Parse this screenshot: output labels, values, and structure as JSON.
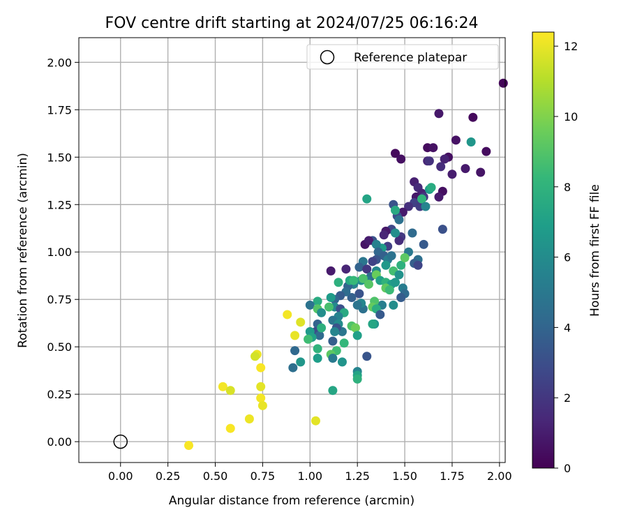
{
  "chart_data": {
    "type": "scatter",
    "title": "FOV centre drift starting at 2024/07/25 06:16:24",
    "xlabel": "Angular distance from reference (arcmin)",
    "ylabel": "Rotation from reference (arcmin)",
    "xlim": [
      -0.22,
      2.03
    ],
    "ylim": [
      -0.11,
      2.13
    ],
    "xticks": [
      "0.00",
      "0.25",
      "0.50",
      "0.75",
      "1.00",
      "1.25",
      "1.50",
      "1.75",
      "2.00"
    ],
    "yticks": [
      "0.00",
      "0.25",
      "0.50",
      "0.75",
      "1.00",
      "1.25",
      "1.50",
      "1.75",
      "2.00"
    ],
    "grid": true,
    "legend": {
      "placement": "top-right",
      "entries": [
        "Reference platepar"
      ]
    },
    "reference_point": {
      "x": 0.0,
      "y": 0.0,
      "marker": "hollow-circle"
    },
    "colorbar": {
      "label": "Hours from first FF file",
      "colormap": "viridis",
      "range": [
        0,
        12.4
      ],
      "ticks": [
        "0",
        "2",
        "4",
        "6",
        "8",
        "10",
        "12"
      ]
    },
    "colors": {
      "viridis": [
        "#440154",
        "#482878",
        "#3e4989",
        "#31688e",
        "#26828e",
        "#1f9e89",
        "#35b779",
        "#6ece58",
        "#b5de2b",
        "#fde725"
      ]
    },
    "series": [
      {
        "points": [
          [
            2.02,
            1.89,
            0.2
          ],
          [
            1.86,
            1.71,
            0.3
          ],
          [
            1.68,
            1.73,
            0.8
          ],
          [
            1.77,
            1.59,
            0.6
          ],
          [
            1.93,
            1.53,
            0.4
          ],
          [
            1.9,
            1.42,
            0.7
          ],
          [
            1.82,
            1.44,
            0.9
          ],
          [
            1.73,
            1.5,
            0.5
          ],
          [
            1.75,
            1.41,
            1.0
          ],
          [
            1.71,
            1.49,
            1.2
          ],
          [
            1.69,
            1.45,
            1.6
          ],
          [
            1.7,
            1.32,
            0.5
          ],
          [
            1.68,
            1.29,
            0.9
          ],
          [
            1.62,
            1.55,
            0.4
          ],
          [
            1.65,
            1.55,
            0.6
          ],
          [
            1.62,
            1.48,
            1.3
          ],
          [
            1.63,
            1.48,
            1.8
          ],
          [
            1.45,
            1.52,
            0.3
          ],
          [
            1.48,
            1.49,
            0.5
          ],
          [
            1.55,
            1.37,
            1.1
          ],
          [
            1.57,
            1.34,
            1.5
          ],
          [
            1.59,
            1.31,
            1.2
          ],
          [
            1.56,
            1.29,
            0.8
          ],
          [
            1.6,
            1.29,
            2.0
          ],
          [
            1.55,
            1.26,
            2.4
          ],
          [
            1.58,
            1.24,
            2.2
          ],
          [
            1.52,
            1.24,
            1.7
          ],
          [
            1.49,
            1.21,
            0.9
          ],
          [
            1.46,
            1.19,
            2.9
          ],
          [
            1.44,
            1.25,
            3.2
          ],
          [
            1.63,
            1.33,
            6.8
          ],
          [
            1.64,
            1.34,
            7.6
          ],
          [
            1.59,
            1.28,
            8.1
          ],
          [
            1.61,
            1.24,
            5.6
          ],
          [
            1.85,
            1.58,
            6.5
          ],
          [
            1.7,
            1.12,
            3.1
          ],
          [
            1.6,
            1.04,
            3.5
          ],
          [
            1.54,
            1.1,
            4.3
          ],
          [
            1.52,
            1.0,
            5.0
          ],
          [
            1.57,
            0.96,
            4.5
          ],
          [
            1.55,
            0.94,
            3.7
          ],
          [
            1.57,
            0.93,
            2.6
          ],
          [
            1.48,
            1.08,
            2.1
          ],
          [
            1.47,
            1.06,
            1.6
          ],
          [
            1.43,
            1.12,
            2.7
          ],
          [
            1.4,
            1.11,
            0.8
          ],
          [
            1.39,
            1.09,
            1.3
          ],
          [
            1.41,
            1.03,
            2.4
          ],
          [
            1.33,
            1.06,
            3.2
          ],
          [
            1.29,
            1.04,
            0.7
          ],
          [
            1.31,
            1.06,
            1.0
          ],
          [
            1.3,
            1.28,
            7.2
          ],
          [
            1.45,
            1.22,
            7.5
          ],
          [
            1.47,
            1.17,
            4.6
          ],
          [
            1.45,
            1.1,
            6.1
          ],
          [
            1.38,
            1.02,
            6.8
          ],
          [
            1.35,
            1.04,
            5.4
          ],
          [
            1.36,
            1.0,
            4.1
          ],
          [
            1.39,
            0.98,
            3.8
          ],
          [
            1.41,
            0.96,
            5.2
          ],
          [
            1.43,
            0.98,
            4.7
          ],
          [
            1.35,
            0.96,
            3.3
          ],
          [
            1.33,
            0.95,
            2.5
          ],
          [
            1.28,
            0.95,
            4.9
          ],
          [
            1.26,
            0.92,
            3.9
          ],
          [
            1.3,
            0.91,
            2.0
          ],
          [
            1.19,
            0.91,
            1.3
          ],
          [
            1.11,
            0.9,
            0.9
          ],
          [
            1.48,
            0.93,
            7.9
          ],
          [
            1.44,
            0.9,
            8.6
          ],
          [
            1.47,
            0.88,
            6.3
          ],
          [
            1.5,
            0.97,
            9.2
          ],
          [
            1.4,
            0.93,
            6.6
          ],
          [
            1.35,
            0.9,
            5.8
          ],
          [
            1.32,
            0.87,
            4.4
          ],
          [
            1.3,
            0.85,
            5.1
          ],
          [
            1.27,
            0.85,
            6.2
          ],
          [
            1.23,
            0.83,
            5.5
          ],
          [
            1.2,
            0.82,
            4.0
          ],
          [
            1.21,
            0.85,
            7.4
          ],
          [
            1.23,
            0.85,
            8.3
          ],
          [
            1.15,
            0.84,
            7.8
          ],
          [
            1.28,
            0.86,
            8.8
          ],
          [
            1.31,
            0.83,
            9.1
          ],
          [
            1.35,
            0.88,
            9.5
          ],
          [
            1.37,
            0.85,
            7.1
          ],
          [
            1.4,
            0.84,
            8.0
          ],
          [
            1.43,
            0.83,
            6.9
          ],
          [
            1.4,
            0.81,
            9.3
          ],
          [
            1.42,
            0.8,
            8.4
          ],
          [
            1.45,
            0.84,
            6.6
          ],
          [
            1.49,
            0.81,
            5.2
          ],
          [
            1.5,
            0.78,
            4.3
          ],
          [
            1.48,
            0.76,
            3.6
          ],
          [
            1.44,
            0.72,
            6.0
          ],
          [
            1.38,
            0.72,
            5.3
          ],
          [
            1.34,
            0.74,
            8.9
          ],
          [
            1.33,
            0.71,
            9.4
          ],
          [
            1.35,
            0.7,
            7.7
          ],
          [
            1.37,
            0.67,
            3.5
          ],
          [
            1.34,
            0.62,
            6.4
          ],
          [
            1.33,
            0.62,
            7.3
          ],
          [
            1.28,
            0.7,
            4.6
          ],
          [
            1.27,
            0.73,
            5.7
          ],
          [
            1.25,
            0.72,
            4.8
          ],
          [
            1.26,
            0.78,
            3.2
          ],
          [
            1.22,
            0.76,
            3.8
          ],
          [
            1.19,
            0.79,
            4.4
          ],
          [
            1.16,
            0.77,
            3.6
          ],
          [
            1.13,
            0.75,
            4.1
          ],
          [
            1.11,
            0.76,
            6.8
          ],
          [
            1.13,
            0.71,
            5.9
          ],
          [
            1.16,
            0.7,
            3.1
          ],
          [
            1.18,
            0.68,
            7.5
          ],
          [
            1.15,
            0.66,
            5.5
          ],
          [
            1.1,
            0.71,
            8.7
          ],
          [
            1.04,
            0.74,
            7.6
          ],
          [
            1.0,
            0.72,
            4.7
          ],
          [
            1.04,
            0.7,
            9.0
          ],
          [
            1.06,
            0.68,
            6.1
          ],
          [
            1.04,
            0.62,
            3.9
          ],
          [
            1.03,
            0.58,
            2.9
          ],
          [
            1.05,
            0.56,
            4.3
          ],
          [
            1.0,
            0.58,
            6.7
          ],
          [
            1.01,
            0.55,
            7.1
          ],
          [
            1.06,
            0.6,
            7.8
          ],
          [
            0.99,
            0.54,
            8.5
          ],
          [
            1.12,
            0.64,
            4.8
          ],
          [
            1.15,
            0.62,
            6.0
          ],
          [
            1.17,
            0.58,
            4.9
          ],
          [
            1.14,
            0.6,
            3.2
          ],
          [
            1.13,
            0.58,
            5.6
          ],
          [
            1.12,
            0.53,
            3.7
          ],
          [
            1.18,
            0.52,
            8.2
          ],
          [
            1.22,
            0.61,
            8.9
          ],
          [
            1.24,
            0.6,
            9.6
          ],
          [
            1.25,
            0.56,
            7.0
          ],
          [
            1.3,
            0.45,
            3.3
          ],
          [
            1.14,
            0.48,
            8.5
          ],
          [
            1.11,
            0.46,
            9.2
          ],
          [
            1.12,
            0.44,
            5.1
          ],
          [
            1.17,
            0.42,
            6.4
          ],
          [
            1.04,
            0.49,
            8.0
          ],
          [
            1.04,
            0.44,
            6.9
          ],
          [
            0.92,
            0.48,
            4.2
          ],
          [
            0.91,
            0.39,
            4.5
          ],
          [
            0.95,
            0.42,
            6.5
          ],
          [
            1.25,
            0.37,
            5.6
          ],
          [
            1.25,
            0.35,
            7.2
          ],
          [
            1.25,
            0.33,
            7.9
          ],
          [
            1.12,
            0.27,
            7.3
          ],
          [
            1.03,
            0.11,
            11.9
          ],
          [
            0.88,
            0.67,
            12.2
          ],
          [
            0.95,
            0.63,
            11.8
          ],
          [
            0.92,
            0.56,
            12.0
          ],
          [
            0.72,
            0.46,
            12.1
          ],
          [
            0.71,
            0.45,
            11.6
          ],
          [
            0.74,
            0.39,
            12.3
          ],
          [
            0.74,
            0.29,
            11.9
          ],
          [
            0.74,
            0.23,
            12.2
          ],
          [
            0.75,
            0.19,
            12.0
          ],
          [
            0.54,
            0.29,
            12.2
          ],
          [
            0.58,
            0.27,
            11.7
          ],
          [
            0.68,
            0.12,
            12.1
          ],
          [
            0.58,
            0.07,
            12.3
          ],
          [
            0.36,
            -0.02,
            12.3
          ]
        ]
      }
    ]
  }
}
